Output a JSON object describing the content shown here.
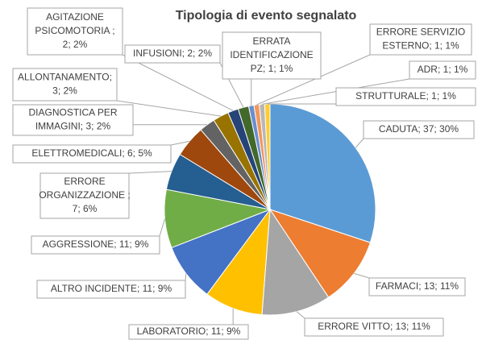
{
  "chart_data": {
    "type": "pie",
    "title": "Tipologia di evento segnalato",
    "values": [
      37,
      13,
      13,
      11,
      11,
      11,
      7,
      6,
      3,
      3,
      2,
      2,
      1,
      1,
      1,
      1
    ],
    "value_labels": [
      [
        "CADUTA; 37; 30%"
      ],
      [
        "FARMACI; 13; 11%"
      ],
      [
        "ERRORE VITTO; 13; 11%"
      ],
      [
        "LABORATORIO; 11; 9%"
      ],
      [
        "ALTRO INCIDENTE; 11; 9%"
      ],
      [
        "AGGRESSIONE; 11; 9%"
      ],
      [
        "ERRORE",
        "ORGANIZZAZIONE ;",
        "7; 6%"
      ],
      [
        "ELETTROMEDICALI; 6; 5%"
      ],
      [
        "DIAGNOSTICA PER",
        "IMMAGINI; 3; 2%"
      ],
      [
        "ALLONTANAMENTO;",
        "3; 2%"
      ],
      [
        "AGITAZIONE",
        "PSICOMOTORIA ;",
        "2; 2%"
      ],
      [
        "INFUSIONI; 2; 2%"
      ],
      [
        "ERRATA",
        "IDENTIFICAZIONE",
        "PZ; 1; 1%"
      ],
      [
        "ERRORE SERVIZIO",
        "ESTERNO; 1; 1%"
      ],
      [
        "ADR; 1; 1%"
      ],
      [
        "STRUTTURALE; 1; 1%"
      ]
    ],
    "colors": [
      "#5b9bd5",
      "#ed7d31",
      "#a5a5a5",
      "#ffc000",
      "#4472c4",
      "#70ad47",
      "#255e91",
      "#9e480e",
      "#636363",
      "#997300",
      "#264478",
      "#43682b",
      "#698ed0",
      "#f1975a",
      "#b7b7b7",
      "#ffcd33"
    ]
  }
}
